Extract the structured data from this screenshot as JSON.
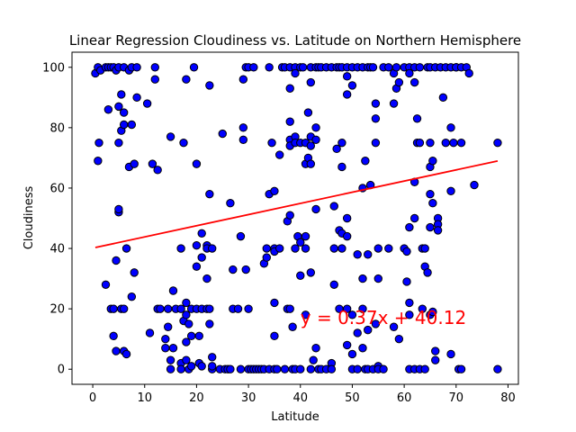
{
  "chart_data": {
    "type": "scatter",
    "title": "Linear Regression Cloudiness vs. Latitude on Northern Hemisphere",
    "xlabel": "Latitude",
    "ylabel": "Cloudiness",
    "xlim": [
      -4,
      82
    ],
    "ylim": [
      -5,
      105
    ],
    "xticks": [
      0,
      10,
      20,
      30,
      40,
      50,
      60,
      70,
      80
    ],
    "yticks": [
      0,
      20,
      40,
      60,
      80,
      100
    ],
    "grid": false,
    "point_color": "#0000ff",
    "point_edge_color": "#000000",
    "line_color": "#ff0000",
    "regression": {
      "slope": 0.37,
      "intercept": 40.12,
      "x_range": [
        0.5,
        78
      ]
    },
    "annotation": {
      "text": "y = 0.37x + 40.12",
      "x": 40,
      "y": 15,
      "color": "#ff0000"
    },
    "points": [
      [
        0.5,
        98
      ],
      [
        1,
        100
      ],
      [
        1.5,
        99
      ],
      [
        2.5,
        100
      ],
      [
        3,
        100
      ],
      [
        3.5,
        100
      ],
      [
        4,
        100
      ],
      [
        4.5,
        99
      ],
      [
        5,
        100
      ],
      [
        6,
        100
      ],
      [
        7,
        99
      ],
      [
        7.5,
        100
      ],
      [
        8.5,
        100
      ],
      [
        1.2,
        75
      ],
      [
        1,
        69
      ],
      [
        2.5,
        28
      ],
      [
        3,
        86
      ],
      [
        3.5,
        20
      ],
      [
        4,
        11
      ],
      [
        4.5,
        6
      ],
      [
        4.5,
        36
      ],
      [
        5,
        52
      ],
      [
        5,
        53
      ],
      [
        5,
        75
      ],
      [
        5,
        87
      ],
      [
        5.5,
        79
      ],
      [
        5.5,
        91
      ],
      [
        6,
        85
      ],
      [
        6,
        81
      ],
      [
        5.5,
        20
      ],
      [
        6,
        20
      ],
      [
        6,
        6
      ],
      [
        6.5,
        40
      ],
      [
        6.5,
        5
      ],
      [
        7,
        67
      ],
      [
        7.5,
        81
      ],
      [
        7.5,
        24
      ],
      [
        8,
        68
      ],
      [
        8,
        32
      ],
      [
        8.5,
        90
      ],
      [
        4,
        20
      ],
      [
        10.5,
        88
      ],
      [
        11,
        12
      ],
      [
        11.5,
        68
      ],
      [
        12,
        100
      ],
      [
        12,
        96
      ],
      [
        12.5,
        66
      ],
      [
        12.5,
        20
      ],
      [
        13,
        20
      ],
      [
        14,
        10
      ],
      [
        14,
        7
      ],
      [
        14.5,
        14
      ],
      [
        14.5,
        20
      ],
      [
        15,
        3
      ],
      [
        15,
        0
      ],
      [
        15,
        77
      ],
      [
        15.5,
        7
      ],
      [
        15.5,
        26
      ],
      [
        16,
        20
      ],
      [
        17,
        2
      ],
      [
        17,
        0
      ],
      [
        17,
        20
      ],
      [
        17,
        40
      ],
      [
        17.5,
        16
      ],
      [
        17.5,
        75
      ],
      [
        18,
        96
      ],
      [
        18,
        3
      ],
      [
        18,
        9
      ],
      [
        18,
        18
      ],
      [
        18,
        22
      ],
      [
        18.5,
        15
      ],
      [
        18.5,
        0
      ],
      [
        19,
        1
      ],
      [
        19,
        11
      ],
      [
        19,
        20
      ],
      [
        19.5,
        100
      ],
      [
        20,
        41
      ],
      [
        20,
        34
      ],
      [
        20,
        20
      ],
      [
        20,
        68
      ],
      [
        20.5,
        11
      ],
      [
        20.5,
        2
      ],
      [
        21,
        45
      ],
      [
        21,
        37
      ],
      [
        21,
        20
      ],
      [
        21,
        1
      ],
      [
        22,
        20
      ],
      [
        22,
        30
      ],
      [
        22,
        41
      ],
      [
        22,
        40
      ],
      [
        22.5,
        94
      ],
      [
        22.5,
        58
      ],
      [
        22.5,
        15
      ],
      [
        22.5,
        20
      ],
      [
        23,
        40
      ],
      [
        23,
        4
      ],
      [
        23,
        0
      ],
      [
        23,
        1
      ],
      [
        24.5,
        0
      ],
      [
        25,
        78
      ],
      [
        25.5,
        0
      ],
      [
        26,
        0
      ],
      [
        26.5,
        0
      ],
      [
        26.5,
        55
      ],
      [
        27,
        33
      ],
      [
        27,
        20
      ],
      [
        28,
        20
      ],
      [
        28.5,
        44
      ],
      [
        28.5,
        0
      ],
      [
        29,
        96
      ],
      [
        29,
        80
      ],
      [
        29,
        76
      ],
      [
        29.5,
        100
      ],
      [
        29.5,
        33
      ],
      [
        30,
        100
      ],
      [
        30,
        20
      ],
      [
        30,
        0
      ],
      [
        30.5,
        0
      ],
      [
        31,
        100
      ],
      [
        31,
        0
      ],
      [
        31.5,
        0
      ],
      [
        32,
        0
      ],
      [
        32.5,
        0
      ],
      [
        33,
        35
      ],
      [
        33,
        0
      ],
      [
        33.5,
        40
      ],
      [
        33.5,
        37
      ],
      [
        34,
        58
      ],
      [
        34,
        100
      ],
      [
        34,
        0
      ],
      [
        34.5,
        75
      ],
      [
        35,
        59
      ],
      [
        35,
        40
      ],
      [
        35,
        39
      ],
      [
        35,
        22
      ],
      [
        35,
        11
      ],
      [
        35,
        0
      ],
      [
        35.5,
        0
      ],
      [
        36,
        40
      ],
      [
        36,
        71
      ],
      [
        36.5,
        100
      ],
      [
        37,
        100
      ],
      [
        37,
        0
      ],
      [
        37.5,
        20
      ],
      [
        37.5,
        49
      ],
      [
        38,
        100
      ],
      [
        38,
        93
      ],
      [
        38,
        82
      ],
      [
        38,
        76
      ],
      [
        38,
        74
      ],
      [
        38,
        51
      ],
      [
        38,
        20
      ],
      [
        38.5,
        14
      ],
      [
        38.5,
        0
      ],
      [
        39,
        100
      ],
      [
        39,
        98
      ],
      [
        39,
        77
      ],
      [
        39,
        75
      ],
      [
        39,
        40
      ],
      [
        39,
        0
      ],
      [
        39.5,
        44
      ],
      [
        40,
        100
      ],
      [
        40,
        75
      ],
      [
        40,
        42
      ],
      [
        40,
        31
      ],
      [
        40,
        0
      ],
      [
        40.5,
        100
      ],
      [
        41,
        75
      ],
      [
        41,
        68
      ],
      [
        41,
        44
      ],
      [
        41,
        40
      ],
      [
        41,
        18
      ],
      [
        41.5,
        85
      ],
      [
        41.5,
        70
      ],
      [
        42,
        100
      ],
      [
        42,
        77
      ],
      [
        42,
        74
      ],
      [
        42,
        68
      ],
      [
        42,
        95
      ],
      [
        42,
        32
      ],
      [
        42,
        0
      ],
      [
        42.5,
        3
      ],
      [
        43,
        100
      ],
      [
        43,
        80
      ],
      [
        43,
        76
      ],
      [
        43,
        53
      ],
      [
        43,
        7
      ],
      [
        43.5,
        100
      ],
      [
        43.5,
        0
      ],
      [
        44,
        100
      ],
      [
        44,
        0
      ],
      [
        45,
        100
      ],
      [
        45,
        0
      ],
      [
        46,
        100
      ],
      [
        46,
        2
      ],
      [
        46,
        0
      ],
      [
        46.5,
        54
      ],
      [
        46.5,
        40
      ],
      [
        46.5,
        28
      ],
      [
        47,
        100
      ],
      [
        47,
        73
      ],
      [
        47.5,
        100
      ],
      [
        47.5,
        46
      ],
      [
        47.5,
        20
      ],
      [
        48,
        100
      ],
      [
        48,
        75
      ],
      [
        48,
        67
      ],
      [
        48,
        45
      ],
      [
        48,
        40
      ],
      [
        49,
        100
      ],
      [
        49,
        97
      ],
      [
        49,
        91
      ],
      [
        49,
        50
      ],
      [
        49,
        44
      ],
      [
        49,
        20
      ],
      [
        49,
        8
      ],
      [
        50,
        100
      ],
      [
        50,
        94
      ],
      [
        50,
        18
      ],
      [
        50,
        0
      ],
      [
        50,
        5
      ],
      [
        51,
        100
      ],
      [
        51,
        38
      ],
      [
        51,
        12
      ],
      [
        51,
        0
      ],
      [
        52,
        100
      ],
      [
        52,
        60
      ],
      [
        52,
        30
      ],
      [
        52,
        20
      ],
      [
        52,
        7
      ],
      [
        52.5,
        69
      ],
      [
        52.5,
        0
      ],
      [
        53,
        100
      ],
      [
        53,
        38
      ],
      [
        53,
        13
      ],
      [
        53,
        0
      ],
      [
        53.5,
        100
      ],
      [
        53.5,
        61
      ],
      [
        54,
        100
      ],
      [
        54,
        0
      ],
      [
        54.5,
        88
      ],
      [
        54.5,
        83
      ],
      [
        54.5,
        75
      ],
      [
        54.5,
        15
      ],
      [
        55,
        40
      ],
      [
        55,
        30
      ],
      [
        55,
        1
      ],
      [
        55,
        0
      ],
      [
        56,
        100
      ],
      [
        56,
        0
      ],
      [
        57,
        100
      ],
      [
        57,
        40
      ],
      [
        58,
        98
      ],
      [
        58,
        88
      ],
      [
        58,
        14
      ],
      [
        58.5,
        100
      ],
      [
        58.5,
        93
      ],
      [
        59,
        95
      ],
      [
        59,
        10
      ],
      [
        60,
        100
      ],
      [
        60,
        40
      ],
      [
        60.5,
        39
      ],
      [
        60.5,
        29
      ],
      [
        61,
        100
      ],
      [
        61,
        98
      ],
      [
        61,
        47
      ],
      [
        61,
        22
      ],
      [
        61,
        18
      ],
      [
        61,
        0
      ],
      [
        62,
        100
      ],
      [
        62,
        95
      ],
      [
        62,
        50
      ],
      [
        62,
        62
      ],
      [
        62,
        0
      ],
      [
        62.5,
        83
      ],
      [
        62.5,
        75
      ],
      [
        63,
        100
      ],
      [
        63,
        75
      ],
      [
        63,
        0
      ],
      [
        63.5,
        40
      ],
      [
        63.5,
        20
      ],
      [
        64,
        40
      ],
      [
        64,
        34
      ],
      [
        64,
        0
      ],
      [
        64.5,
        100
      ],
      [
        64.5,
        32
      ],
      [
        65,
        100
      ],
      [
        65,
        75
      ],
      [
        65,
        67
      ],
      [
        65,
        58
      ],
      [
        65,
        47
      ],
      [
        65,
        18
      ],
      [
        65.5,
        55
      ],
      [
        65.5,
        19
      ],
      [
        65.5,
        69
      ],
      [
        66,
        100
      ],
      [
        66,
        6
      ],
      [
        66,
        3
      ],
      [
        66.5,
        50
      ],
      [
        66.5,
        48
      ],
      [
        66.5,
        46
      ],
      [
        67,
        100
      ],
      [
        67.5,
        90
      ],
      [
        68,
        100
      ],
      [
        68,
        75
      ],
      [
        69,
        100
      ],
      [
        69,
        80
      ],
      [
        69,
        59
      ],
      [
        69,
        5
      ],
      [
        69.5,
        75
      ],
      [
        70,
        100
      ],
      [
        70,
        100
      ],
      [
        70.5,
        0
      ],
      [
        71,
        100
      ],
      [
        71,
        75
      ],
      [
        71,
        0
      ],
      [
        72,
        100
      ],
      [
        72.5,
        98
      ],
      [
        73.5,
        61
      ],
      [
        78,
        75
      ],
      [
        78,
        0
      ]
    ]
  }
}
